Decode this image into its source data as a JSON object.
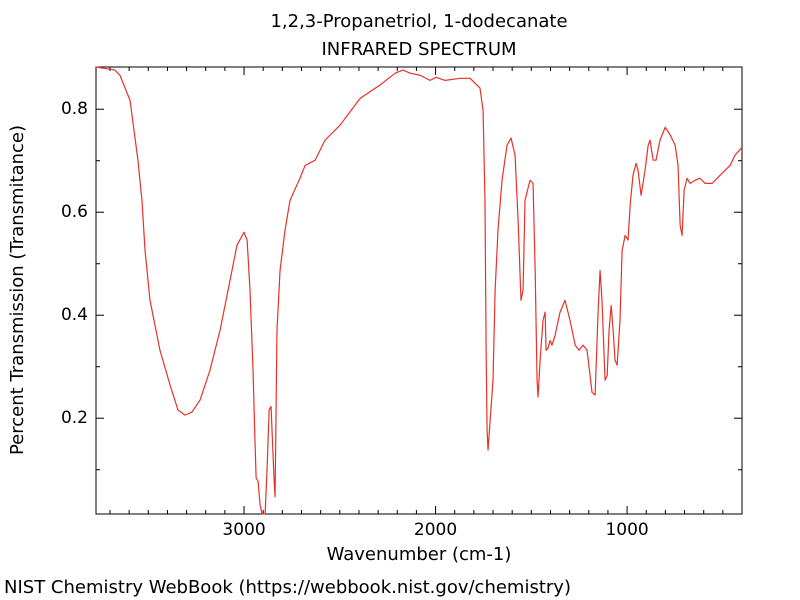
{
  "chart_data": {
    "type": "line",
    "title": "1,2,3-Propanetriol, 1-dodecanate",
    "subtitle": "INFRARED SPECTRUM",
    "xlabel": "Wavenumber (cm-1)",
    "ylabel": "Percent Transmission (Transmitance)",
    "footer": "NIST Chemistry WebBook (https://webbook.nist.gov/chemistry)",
    "color": "#e8312a",
    "xlim": [
      3773,
      400
    ],
    "ylim": [
      0.014,
      0.882
    ],
    "xticks": [
      3000,
      2000,
      1000
    ],
    "yticks": [
      0.2,
      0.4,
      0.6,
      0.8
    ],
    "xminorticks": [
      3700,
      3600,
      3500,
      3400,
      3300,
      3200,
      3100,
      2900,
      2800,
      2700,
      2600,
      2500,
      2400,
      2300,
      2200,
      2100,
      1900,
      1800,
      1700,
      1600,
      1500,
      1400,
      1300,
      1200,
      1100,
      900,
      800,
      700,
      600,
      500
    ],
    "yminorticks": [
      0.1,
      0.3,
      0.5,
      0.7
    ],
    "x": [
      3773,
      3674,
      3648,
      3595,
      3554,
      3533,
      3517,
      3491,
      3439,
      3386,
      3345,
      3308,
      3272,
      3230,
      3178,
      3125,
      3073,
      3037,
      3000,
      2984,
      2969,
      2953,
      2943,
      2937,
      2927,
      2916,
      2906,
      2890,
      2880,
      2869,
      2859,
      2854,
      2843,
      2838,
      2828,
      2812,
      2786,
      2760,
      2708,
      2681,
      2629,
      2577,
      2499,
      2394,
      2290,
      2211,
      2170,
      2133,
      2081,
      2029,
      1997,
      1950,
      1872,
      1820,
      1768,
      1752,
      1742,
      1736,
      1731,
      1726,
      1715,
      1700,
      1689,
      1674,
      1653,
      1627,
      1606,
      1585,
      1569,
      1554,
      1543,
      1533,
      1507,
      1491,
      1480,
      1470,
      1465,
      1454,
      1439,
      1428,
      1423,
      1413,
      1402,
      1392,
      1376,
      1350,
      1324,
      1298,
      1271,
      1251,
      1230,
      1209,
      1183,
      1167,
      1151,
      1141,
      1131,
      1115,
      1104,
      1094,
      1083,
      1073,
      1063,
      1052,
      1037,
      1026,
      1010,
      995,
      984,
      969,
      953,
      943,
      927,
      906,
      890,
      880,
      864,
      849,
      828,
      801,
      775,
      749,
      734,
      723,
      713,
      702,
      687,
      671,
      645,
      619,
      593,
      556,
      514,
      462,
      436,
      400
    ],
    "values": [
      0.882,
      0.876,
      0.866,
      0.817,
      0.701,
      0.623,
      0.526,
      0.429,
      0.332,
      0.264,
      0.216,
      0.206,
      0.212,
      0.235,
      0.293,
      0.371,
      0.468,
      0.536,
      0.561,
      0.546,
      0.449,
      0.293,
      0.157,
      0.084,
      0.078,
      0.031,
      0.014,
      0.014,
      0.099,
      0.216,
      0.223,
      0.177,
      0.08,
      0.047,
      0.371,
      0.487,
      0.565,
      0.623,
      0.666,
      0.691,
      0.701,
      0.74,
      0.769,
      0.821,
      0.847,
      0.87,
      0.876,
      0.87,
      0.866,
      0.856,
      0.862,
      0.856,
      0.86,
      0.86,
      0.841,
      0.798,
      0.623,
      0.332,
      0.177,
      0.138,
      0.196,
      0.274,
      0.449,
      0.565,
      0.662,
      0.73,
      0.744,
      0.711,
      0.584,
      0.429,
      0.449,
      0.623,
      0.662,
      0.656,
      0.487,
      0.274,
      0.241,
      0.313,
      0.39,
      0.406,
      0.332,
      0.336,
      0.351,
      0.342,
      0.361,
      0.406,
      0.429,
      0.39,
      0.342,
      0.332,
      0.342,
      0.332,
      0.25,
      0.245,
      0.41,
      0.487,
      0.429,
      0.274,
      0.283,
      0.371,
      0.419,
      0.371,
      0.313,
      0.303,
      0.39,
      0.526,
      0.555,
      0.546,
      0.614,
      0.672,
      0.695,
      0.682,
      0.633,
      0.682,
      0.73,
      0.74,
      0.701,
      0.701,
      0.74,
      0.765,
      0.75,
      0.73,
      0.691,
      0.575,
      0.555,
      0.643,
      0.666,
      0.656,
      0.662,
      0.666,
      0.656,
      0.656,
      0.672,
      0.691,
      0.711,
      0.726
    ]
  }
}
